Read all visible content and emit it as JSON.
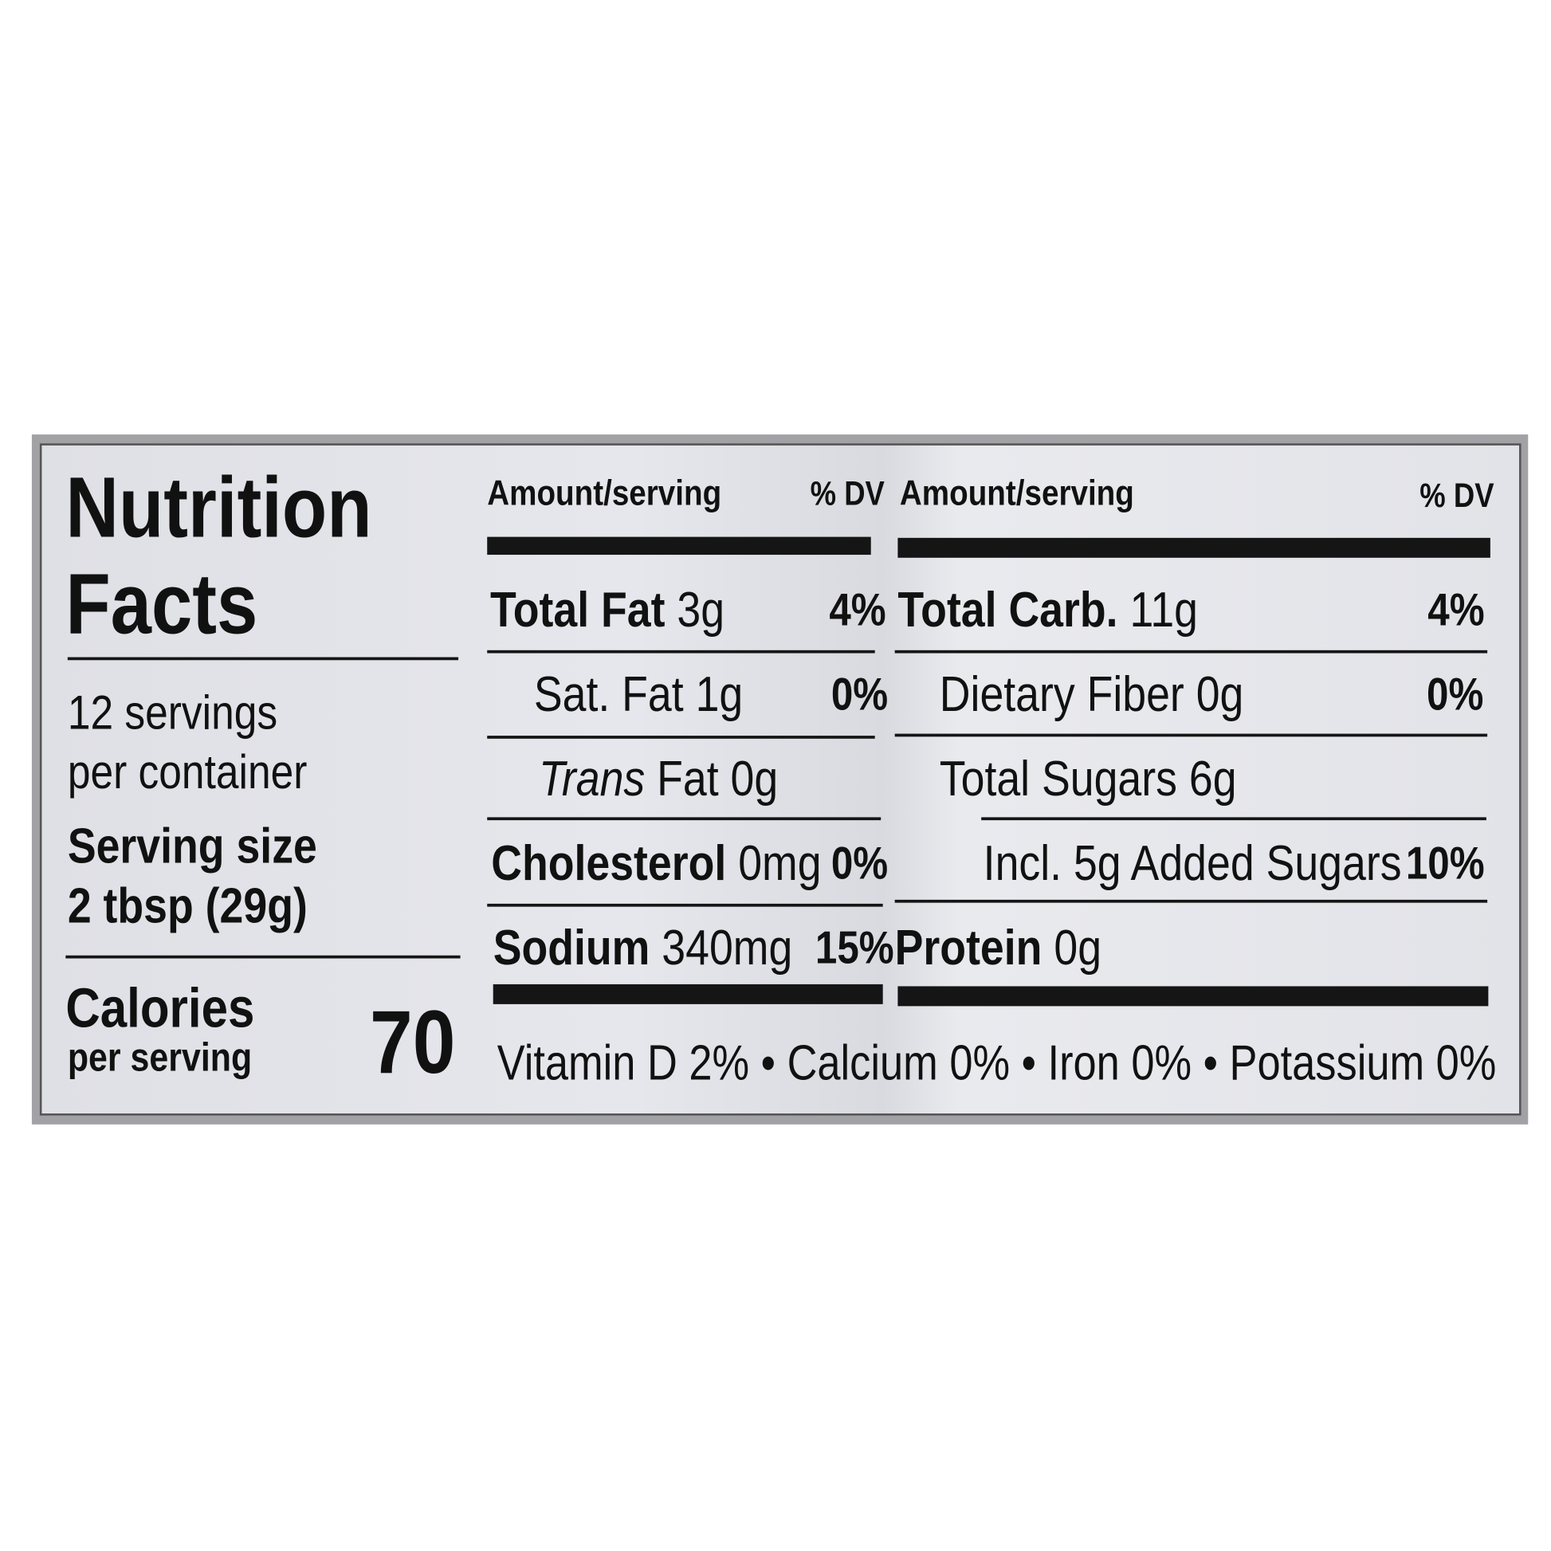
{
  "title_line1": "Nutrition",
  "title_line2": "Facts",
  "servings_line1": "12 servings",
  "servings_line2": "per container",
  "serving_size_label": "Serving size",
  "serving_size_value": "2 tbsp (29g)",
  "calories_label": "Calories",
  "calories_sub": "per serving",
  "calories_value": "70",
  "left_table": {
    "header_amount": "Amount/serving",
    "header_dv": "% DV",
    "rows": [
      {
        "name": "Total Fat",
        "amount": "3g",
        "dv": "4%"
      },
      {
        "name": "Sat. Fat",
        "amount": "1g",
        "dv": "0%"
      },
      {
        "name": "Trans",
        "amount": "Fat 0g",
        "dv": ""
      },
      {
        "name": "Cholesterol",
        "amount": "0mg",
        "dv": "0%"
      },
      {
        "name": "Sodium",
        "amount": "340mg",
        "dv": "15%"
      }
    ]
  },
  "right_table": {
    "header_amount": "Amount/serving",
    "header_dv": "% DV",
    "rows": [
      {
        "name": "Total Carb.",
        "amount": "11g",
        "dv": "4%"
      },
      {
        "name": "Dietary Fiber",
        "amount": "0g",
        "dv": "0%"
      },
      {
        "name": "Total Sugars",
        "amount": "6g",
        "dv": ""
      },
      {
        "name": "Incl. 5g Added Sugars",
        "amount": "",
        "dv": "10%"
      },
      {
        "name": "Protein",
        "amount": "0g",
        "dv": ""
      }
    ]
  },
  "vitamins": "Vitamin D 2% • Calcium 0% • Iron 0% • Potassium 0%"
}
